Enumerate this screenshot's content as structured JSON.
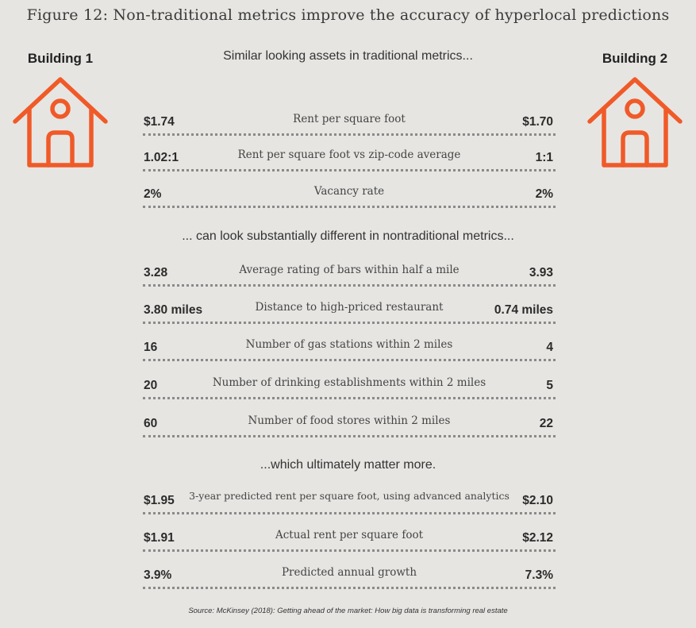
{
  "title": "Figure 12: Non-traditional metrics improve the accuracy of hyperlocal predictions",
  "building1_label": "Building 1",
  "building2_label": "Building 2",
  "icon": "house-icon",
  "accent_color": "#f05a28",
  "sections": [
    {
      "heading": "Similar looking assets in traditional metrics...",
      "rows": [
        {
          "left": "$1.74",
          "metric": "Rent per square foot",
          "right": "$1.70"
        },
        {
          "left": "1.02:1",
          "metric": "Rent per square foot vs zip-code average",
          "right": "1:1"
        },
        {
          "left": "2%",
          "metric": "Vacancy rate",
          "right": "2%"
        }
      ]
    },
    {
      "heading": "... can look substantially different in nontraditional metrics...",
      "rows": [
        {
          "left": "3.28",
          "metric": "Average rating of bars within half a mile",
          "right": "3.93"
        },
        {
          "left": "3.80 miles",
          "metric": "Distance to high-priced restaurant",
          "right": "0.74 miles"
        },
        {
          "left": "16",
          "metric": "Number of gas stations within 2 miles",
          "right": "4"
        },
        {
          "left": "20",
          "metric": "Number of drinking establishments within 2 miles",
          "right": "5"
        },
        {
          "left": "60",
          "metric": "Number of food stores within 2 miles",
          "right": "22"
        }
      ]
    },
    {
      "heading": "...which ultimately matter more.",
      "rows": [
        {
          "left": "$1.95",
          "metric": "3-year predicted rent per square foot, using advanced analytics",
          "right": "$2.10"
        },
        {
          "left": "$1.91",
          "metric": "Actual rent per square foot",
          "right": "$2.12"
        },
        {
          "left": "3.9%",
          "metric": "Predicted annual growth",
          "right": "7.3%"
        }
      ]
    }
  ],
  "source": "Source:  McKinsey (2018): Getting ahead of the market: How big data is transforming real estate"
}
